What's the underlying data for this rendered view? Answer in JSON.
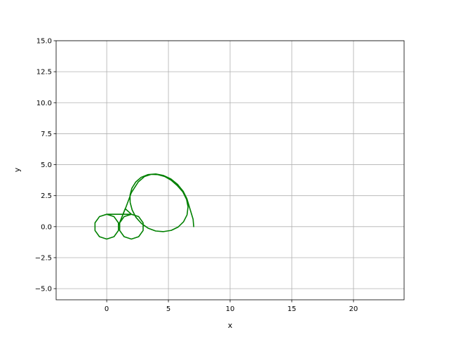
{
  "chart_data": {
    "type": "line",
    "title": "",
    "xlabel": "x",
    "ylabel": "y",
    "xlim": [
      -4.1,
      24.1
    ],
    "ylim": [
      -5.9,
      15.0
    ],
    "xticks": [
      0,
      5,
      10,
      15,
      20
    ],
    "xtick_labels": [
      "0",
      "5",
      "10",
      "15",
      "20"
    ],
    "yticks": [
      -5.0,
      -2.5,
      0.0,
      2.5,
      5.0,
      7.5,
      10.0,
      12.5,
      15.0
    ],
    "ytick_labels": [
      "−5.0",
      "−2.5",
      "0.0",
      "2.5",
      "5.0",
      "7.5",
      "10.0",
      "12.5",
      "15.0"
    ],
    "grid": true,
    "legend": "none",
    "series": [
      {
        "color": "#008000",
        "x": [
          0.0,
          -0.59,
          -0.95,
          -0.95,
          -0.59,
          0.0,
          0.59,
          0.95,
          0.95,
          0.59,
          0.0,
          2.0,
          2.59,
          2.95,
          2.95,
          2.59,
          2.0,
          1.41,
          1.05,
          1.05,
          1.41,
          2.0,
          1.5,
          1.0,
          1.55,
          2.0,
          2.55,
          3.07,
          3.6,
          4.14,
          4.69,
          5.22,
          5.73,
          6.17,
          6.47,
          6.59,
          6.51,
          6.23,
          5.79,
          5.23,
          4.6,
          3.96,
          3.35,
          2.81,
          2.37,
          2.06,
          1.9,
          1.89,
          2.04,
          2.35,
          2.79,
          3.35,
          3.97,
          4.6,
          5.2,
          5.75,
          6.2,
          6.5,
          7.0,
          7.05
        ],
        "y": [
          1.0,
          0.81,
          0.31,
          -0.31,
          -0.81,
          -1.0,
          -0.81,
          -0.31,
          0.31,
          0.81,
          1.0,
          1.0,
          0.81,
          0.31,
          -0.31,
          -0.81,
          -1.0,
          -0.81,
          -0.31,
          0.31,
          0.81,
          1.0,
          1.45,
          0.2,
          1.55,
          2.75,
          3.6,
          4.05,
          4.22,
          4.2,
          4.05,
          3.75,
          3.3,
          2.8,
          2.2,
          1.6,
          0.95,
          0.4,
          -0.03,
          -0.3,
          -0.4,
          -0.35,
          -0.12,
          0.26,
          0.75,
          1.35,
          1.95,
          2.55,
          3.1,
          3.6,
          3.98,
          4.2,
          4.25,
          4.13,
          3.85,
          3.4,
          2.85,
          2.25,
          0.6,
          0.0
        ]
      }
    ]
  }
}
